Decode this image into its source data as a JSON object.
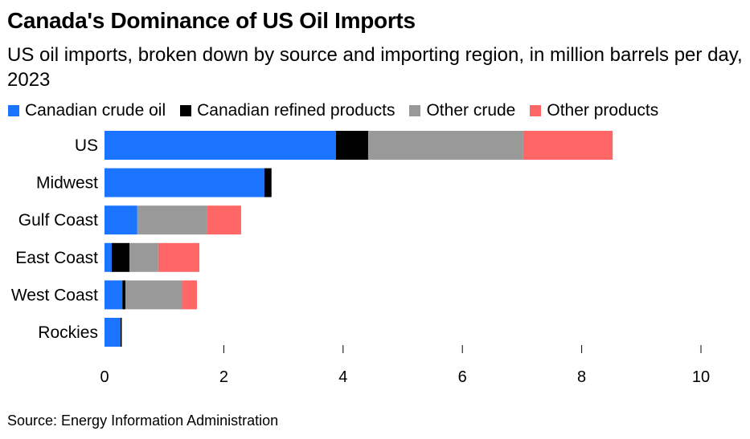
{
  "title": "Canada's Dominance of US Oil Imports",
  "subtitle": "US oil imports, broken down by source and importing region, in million barrels per day, 2023",
  "source": "Source: Energy Information Administration",
  "chart_data": {
    "type": "bar",
    "orientation": "horizontal",
    "stacked": true,
    "categories": [
      "US",
      "Midwest",
      "Gulf Coast",
      "East Coast",
      "West Coast",
      "Rockies"
    ],
    "series": [
      {
        "name": "Canadian crude oil",
        "color": "#1a74ff",
        "values": [
          3.88,
          2.68,
          0.55,
          0.12,
          0.3,
          0.27
        ]
      },
      {
        "name": "Canadian refined products",
        "color": "#000000",
        "values": [
          0.54,
          0.12,
          0.0,
          0.3,
          0.05,
          0.02
        ]
      },
      {
        "name": "Other crude",
        "color": "#999999",
        "values": [
          2.6,
          0.0,
          1.17,
          0.48,
          0.95,
          0.0
        ]
      },
      {
        "name": "Other products",
        "color": "#ff6666",
        "values": [
          1.5,
          0.0,
          0.57,
          0.69,
          0.25,
          0.0
        ]
      }
    ],
    "xlim": [
      0,
      10
    ],
    "xticks": [
      "0",
      "2",
      "4",
      "6",
      "8",
      "10"
    ],
    "grid": false,
    "legend_position": "top-left"
  }
}
